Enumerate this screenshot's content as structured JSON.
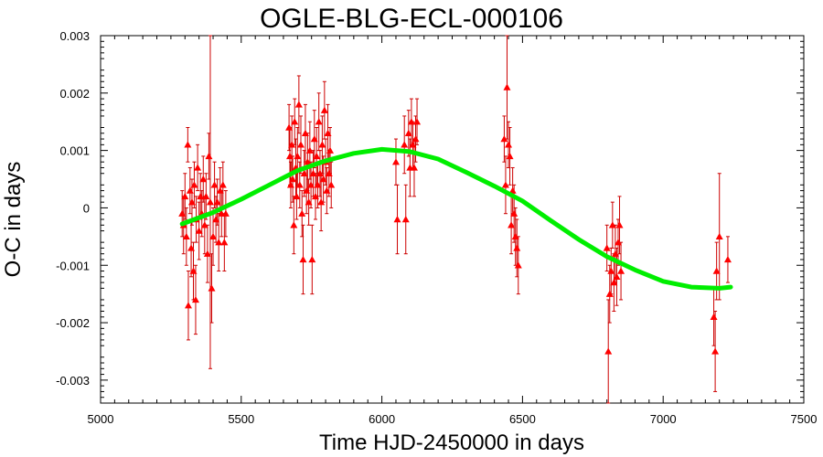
{
  "chart_data": {
    "type": "scatter",
    "title": "OGLE-BLG-ECL-000106",
    "xlabel": "Time HJD-2450000 in days",
    "ylabel": "O-C in days",
    "xlim": [
      5000,
      7500
    ],
    "ylim": [
      -0.0034,
      0.003
    ],
    "x_ticks": [
      5000,
      5500,
      6000,
      6500,
      7000,
      7500
    ],
    "x_tick_labels": [
      "5000",
      "5500",
      "6000",
      "6500",
      "7000",
      "7500"
    ],
    "y_ticks": [
      0.003,
      0.002,
      0.001,
      0,
      -0.001,
      -0.002,
      -0.003
    ],
    "y_tick_labels": [
      "0.003",
      "0.002",
      "0.001",
      "0",
      "-0.001",
      "-0.002",
      "-0.003"
    ],
    "grid": false,
    "colors": {
      "points": "#ff0000",
      "errorbars": "#cc0000",
      "fit": "#00ee00"
    },
    "series": [
      {
        "kind": "points-with-errorbars",
        "points": [
          {
            "x": 5290,
            "y": -0.0001,
            "err": 0.0004
          },
          {
            "x": 5295,
            "y": -0.0003,
            "err": 0.0005
          },
          {
            "x": 5300,
            "y": 0.0002,
            "err": 0.0004
          },
          {
            "x": 5305,
            "y": -0.0005,
            "err": 0.0005
          },
          {
            "x": 5310,
            "y": 0.0011,
            "err": 0.0003
          },
          {
            "x": 5312,
            "y": -0.0017,
            "err": 0.0006
          },
          {
            "x": 5318,
            "y": 0.0003,
            "err": 0.0004
          },
          {
            "x": 5322,
            "y": -0.0007,
            "err": 0.0005
          },
          {
            "x": 5325,
            "y": 0.0001,
            "err": 0.0004
          },
          {
            "x": 5330,
            "y": -0.0011,
            "err": 0.0005
          },
          {
            "x": 5333,
            "y": 0.0004,
            "err": 0.0004
          },
          {
            "x": 5338,
            "y": -0.0016,
            "err": 0.0006
          },
          {
            "x": 5340,
            "y": -0.0002,
            "err": 0.0004
          },
          {
            "x": 5345,
            "y": 0.0007,
            "err": 0.0004
          },
          {
            "x": 5350,
            "y": -0.0004,
            "err": 0.0005
          },
          {
            "x": 5355,
            "y": 0.0002,
            "err": 0.0004
          },
          {
            "x": 5360,
            "y": -0.0001,
            "err": 0.0004
          },
          {
            "x": 5365,
            "y": 0.0005,
            "err": 0.0004
          },
          {
            "x": 5370,
            "y": -0.0003,
            "err": 0.0005
          },
          {
            "x": 5375,
            "y": 0.0002,
            "err": 0.0004
          },
          {
            "x": 5380,
            "y": -0.0008,
            "err": 0.0005
          },
          {
            "x": 5385,
            "y": 0.0009,
            "err": 0.0004
          },
          {
            "x": 5390,
            "y": 0.0001,
            "err": 0.0029
          },
          {
            "x": 5395,
            "y": -0.0014,
            "err": 0.0006
          },
          {
            "x": 5400,
            "y": -0.0005,
            "err": 0.0005
          },
          {
            "x": 5405,
            "y": 0.0004,
            "err": 0.0004
          },
          {
            "x": 5410,
            "y": -0.0002,
            "err": 0.0004
          },
          {
            "x": 5415,
            "y": 0.0001,
            "err": 0.0004
          },
          {
            "x": 5420,
            "y": -0.0006,
            "err": 0.0005
          },
          {
            "x": 5425,
            "y": 0.0003,
            "err": 0.0004
          },
          {
            "x": 5430,
            "y": -0.0001,
            "err": 0.0004
          },
          {
            "x": 5435,
            "y": 0.0004,
            "err": 0.0004
          },
          {
            "x": 5440,
            "y": -0.0006,
            "err": 0.0005
          },
          {
            "x": 5445,
            "y": -0.0001,
            "err": 0.0004
          },
          {
            "x": 5670,
            "y": 0.0014,
            "err": 0.0004
          },
          {
            "x": 5673,
            "y": 0.0009,
            "err": 0.0005
          },
          {
            "x": 5676,
            "y": 0.0004,
            "err": 0.0004
          },
          {
            "x": 5680,
            "y": 0.0011,
            "err": 0.0005
          },
          {
            "x": 5683,
            "y": 0.0005,
            "err": 0.0004
          },
          {
            "x": 5687,
            "y": -0.0003,
            "err": 0.0005
          },
          {
            "x": 5690,
            "y": 0.0015,
            "err": 0.0004
          },
          {
            "x": 5694,
            "y": 0.0007,
            "err": 0.0005
          },
          {
            "x": 5697,
            "y": 0.0002,
            "err": 0.0004
          },
          {
            "x": 5700,
            "y": 0.0009,
            "err": 0.0005
          },
          {
            "x": 5705,
            "y": 0.0018,
            "err": 0.0005
          },
          {
            "x": 5708,
            "y": 0.0004,
            "err": 0.0004
          },
          {
            "x": 5712,
            "y": 0.0011,
            "err": 0.0005
          },
          {
            "x": 5716,
            "y": -0.0001,
            "err": 0.0004
          },
          {
            "x": 5720,
            "y": -0.0009,
            "err": 0.0006
          },
          {
            "x": 5724,
            "y": 0.0006,
            "err": 0.0004
          },
          {
            "x": 5728,
            "y": 0.0013,
            "err": 0.0005
          },
          {
            "x": 5732,
            "y": 0.0003,
            "err": 0.0004
          },
          {
            "x": 5736,
            "y": 0.0008,
            "err": 0.0005
          },
          {
            "x": 5740,
            "y": 0.0001,
            "err": 0.0004
          },
          {
            "x": 5744,
            "y": 0.001,
            "err": 0.0005
          },
          {
            "x": 5748,
            "y": 0.0004,
            "err": 0.0004
          },
          {
            "x": 5752,
            "y": -0.0009,
            "err": 0.0006
          },
          {
            "x": 5756,
            "y": 0.0006,
            "err": 0.0004
          },
          {
            "x": 5760,
            "y": 0.0012,
            "err": 0.0005
          },
          {
            "x": 5764,
            "y": 0.0002,
            "err": 0.0004
          },
          {
            "x": 5768,
            "y": 0.0009,
            "err": 0.0005
          },
          {
            "x": 5772,
            "y": 0.0004,
            "err": 0.0004
          },
          {
            "x": 5776,
            "y": 0.0015,
            "err": 0.0005
          },
          {
            "x": 5780,
            "y": 0.0006,
            "err": 0.0004
          },
          {
            "x": 5784,
            "y": 0.0001,
            "err": 0.0005
          },
          {
            "x": 5788,
            "y": 0.0011,
            "err": 0.0005
          },
          {
            "x": 5792,
            "y": 0.0005,
            "err": 0.0004
          },
          {
            "x": 5796,
            "y": 0.0017,
            "err": 0.0005
          },
          {
            "x": 5800,
            "y": 0.0008,
            "err": 0.0004
          },
          {
            "x": 5804,
            "y": 0.0003,
            "err": 0.0004
          },
          {
            "x": 5808,
            "y": 0.0013,
            "err": 0.0005
          },
          {
            "x": 5812,
            "y": 0.0006,
            "err": 0.0004
          },
          {
            "x": 5816,
            "y": 0.001,
            "err": 0.0004
          },
          {
            "x": 5820,
            "y": 0.0004,
            "err": 0.0004
          },
          {
            "x": 6050,
            "y": 0.0008,
            "err": 0.0004
          },
          {
            "x": 6055,
            "y": -0.0002,
            "err": 0.0006
          },
          {
            "x": 6080,
            "y": 0.0011,
            "err": 0.0005
          },
          {
            "x": 6085,
            "y": -0.0002,
            "err": 0.0006
          },
          {
            "x": 6095,
            "y": 0.0013,
            "err": 0.0004
          },
          {
            "x": 6100,
            "y": 0.0007,
            "err": 0.0005
          },
          {
            "x": 6105,
            "y": 0.0015,
            "err": 0.0004
          },
          {
            "x": 6110,
            "y": 0.0011,
            "err": 0.0004
          },
          {
            "x": 6115,
            "y": 0.0007,
            "err": 0.0005
          },
          {
            "x": 6120,
            "y": 0.0012,
            "err": 0.0004
          },
          {
            "x": 6125,
            "y": 0.0015,
            "err": 0.0004
          },
          {
            "x": 6435,
            "y": 0.0012,
            "err": 0.0004
          },
          {
            "x": 6440,
            "y": 0.0004,
            "err": 0.0005
          },
          {
            "x": 6445,
            "y": 0.0021,
            "err": 0.0009
          },
          {
            "x": 6450,
            "y": 0.0011,
            "err": 0.0004
          },
          {
            "x": 6455,
            "y": 0.0009,
            "err": 0.0005
          },
          {
            "x": 6460,
            "y": -0.0003,
            "err": 0.0005
          },
          {
            "x": 6465,
            "y": 0.0003,
            "err": 0.0004
          },
          {
            "x": 6470,
            "y": -0.0001,
            "err": 0.0005
          },
          {
            "x": 6475,
            "y": -0.0005,
            "err": 0.0005
          },
          {
            "x": 6480,
            "y": -0.0007,
            "err": 0.0005
          },
          {
            "x": 6485,
            "y": -0.001,
            "err": 0.0005
          },
          {
            "x": 6800,
            "y": -0.0007,
            "err": 0.0004
          },
          {
            "x": 6805,
            "y": -0.0025,
            "err": 0.0009
          },
          {
            "x": 6810,
            "y": -0.0015,
            "err": 0.0005
          },
          {
            "x": 6815,
            "y": -0.0011,
            "err": 0.0004
          },
          {
            "x": 6820,
            "y": -0.0003,
            "err": 0.0004
          },
          {
            "x": 6825,
            "y": -0.0013,
            "err": 0.0005
          },
          {
            "x": 6830,
            "y": -0.0008,
            "err": 0.0005
          },
          {
            "x": 6835,
            "y": -0.0012,
            "err": 0.0005
          },
          {
            "x": 6840,
            "y": -0.0006,
            "err": 0.0004
          },
          {
            "x": 6845,
            "y": -0.0003,
            "err": 0.0005
          },
          {
            "x": 6850,
            "y": -0.0011,
            "err": 0.0005
          },
          {
            "x": 7180,
            "y": -0.0019,
            "err": 0.0005
          },
          {
            "x": 7185,
            "y": -0.0025,
            "err": 0.0007
          },
          {
            "x": 7190,
            "y": -0.0011,
            "err": 0.0005
          },
          {
            "x": 7200,
            "y": -0.0005,
            "err": 0.0011
          },
          {
            "x": 7230,
            "y": -0.0009,
            "err": 0.0004
          }
        ]
      },
      {
        "kind": "fit-curve",
        "x": [
          5290,
          5400,
          5500,
          5600,
          5700,
          5800,
          5900,
          6000,
          6100,
          6200,
          6300,
          6400,
          6500,
          6600,
          6700,
          6800,
          6900,
          7000,
          7100,
          7200,
          7240
        ],
        "y": [
          -0.00028,
          -8e-05,
          0.00015,
          0.0004,
          0.00065,
          0.00082,
          0.00095,
          0.00102,
          0.00098,
          0.00085,
          0.00062,
          0.00038,
          0.00012,
          -0.00022,
          -0.00055,
          -0.00085,
          -0.00108,
          -0.00128,
          -0.00138,
          -0.0014,
          -0.00138
        ]
      }
    ]
  }
}
